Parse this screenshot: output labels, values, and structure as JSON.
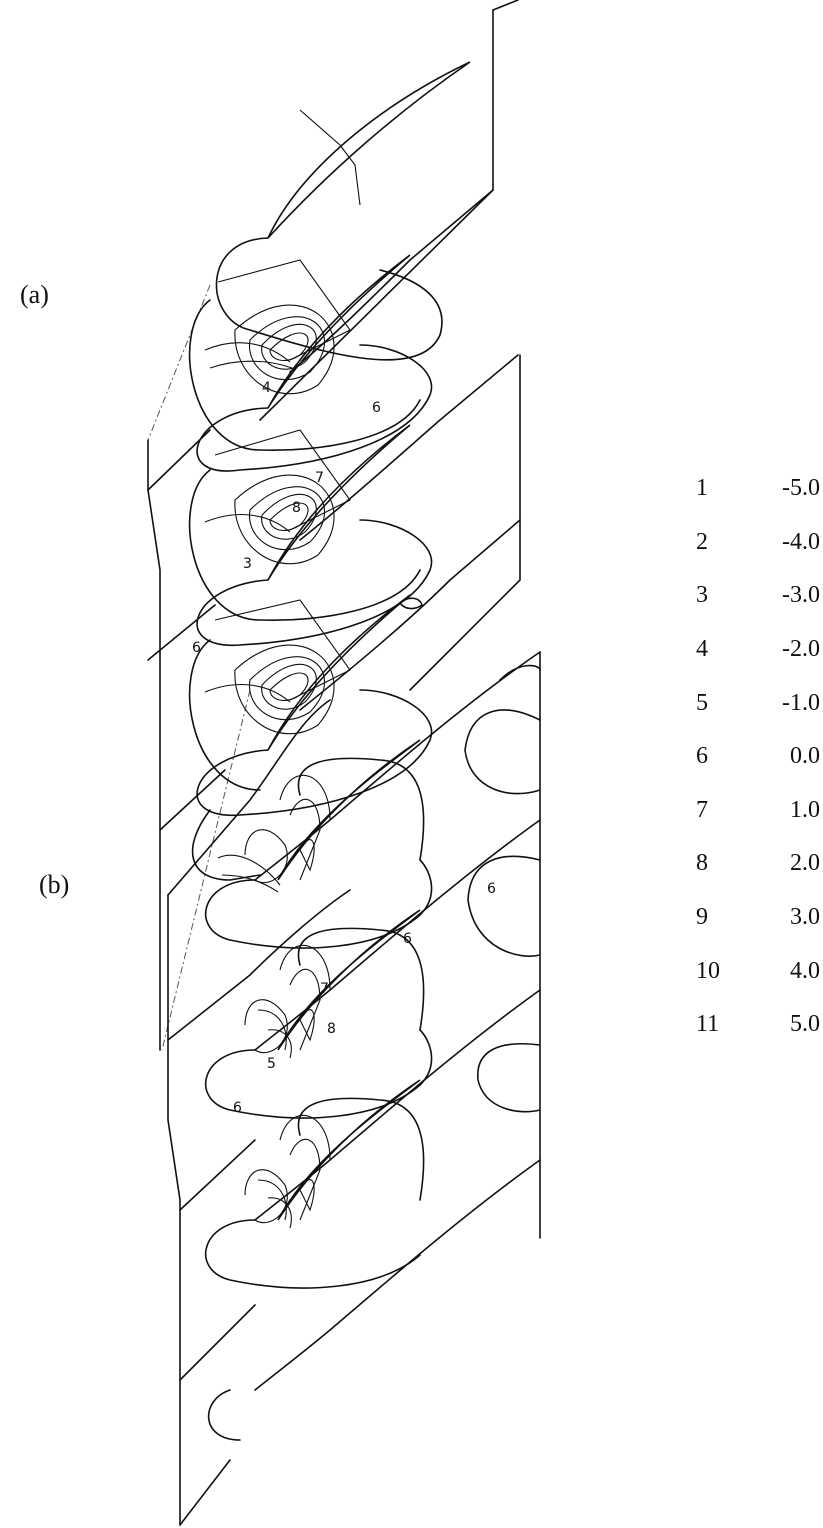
{
  "panels": {
    "a_label": "(a)",
    "b_label": "(b)"
  },
  "legend": [
    {
      "level": "1",
      "value": "-5.0"
    },
    {
      "level": "2",
      "value": "-4.0"
    },
    {
      "level": "3",
      "value": "-3.0"
    },
    {
      "level": "4",
      "value": "-2.0"
    },
    {
      "level": "5",
      "value": "-1.0"
    },
    {
      "level": "6",
      "value": "0.0"
    },
    {
      "level": "7",
      "value": "1.0"
    },
    {
      "level": "8",
      "value": "2.0"
    },
    {
      "level": "9",
      "value": "3.0"
    },
    {
      "level": "10",
      "value": "4.0"
    },
    {
      "level": "11",
      "value": "5.0"
    }
  ],
  "contour_labels_a": [
    "4",
    "6",
    "7",
    "8",
    "3",
    "6"
  ],
  "contour_labels_b": [
    "6",
    "6",
    "7",
    "8",
    "5",
    "6"
  ]
}
